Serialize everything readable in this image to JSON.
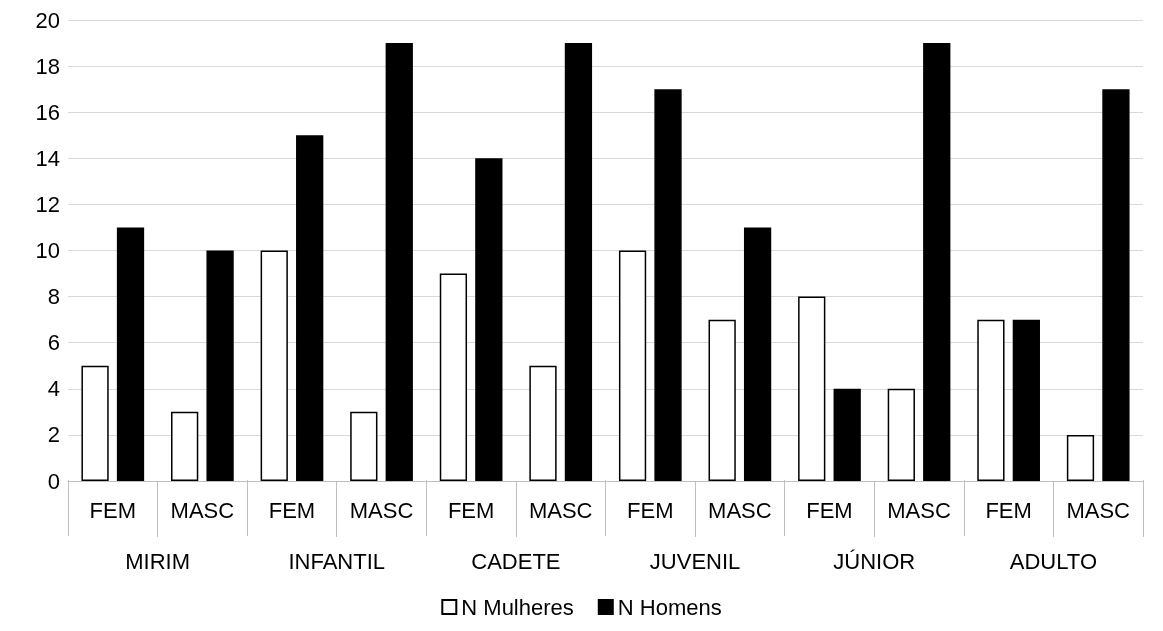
{
  "chart_data": {
    "type": "bar",
    "categories": [
      "FEM",
      "MASC",
      "FEM",
      "MASC",
      "FEM",
      "MASC",
      "FEM",
      "MASC",
      "FEM",
      "MASC",
      "FEM",
      "MASC"
    ],
    "annotations": [
      "MIRIM",
      "INFANTIL",
      "CADETE",
      "JUVENIL",
      "JÚNIOR",
      "ADULTO"
    ],
    "series": [
      {
        "name": "N Mulheres",
        "color": "#ffffff",
        "values": [
          5,
          3,
          10,
          3,
          9,
          5,
          10,
          7,
          8,
          4,
          7,
          2
        ]
      },
      {
        "name": "N Homens",
        "color": "#000000",
        "values": [
          11,
          10,
          15,
          19,
          14,
          19,
          17,
          11,
          4,
          19,
          7,
          17
        ]
      }
    ],
    "ylim": [
      0,
      20
    ],
    "yticks": [
      0,
      2,
      4,
      6,
      8,
      10,
      12,
      14,
      16,
      18,
      20
    ],
    "grid": "y",
    "legend": "bottom"
  }
}
